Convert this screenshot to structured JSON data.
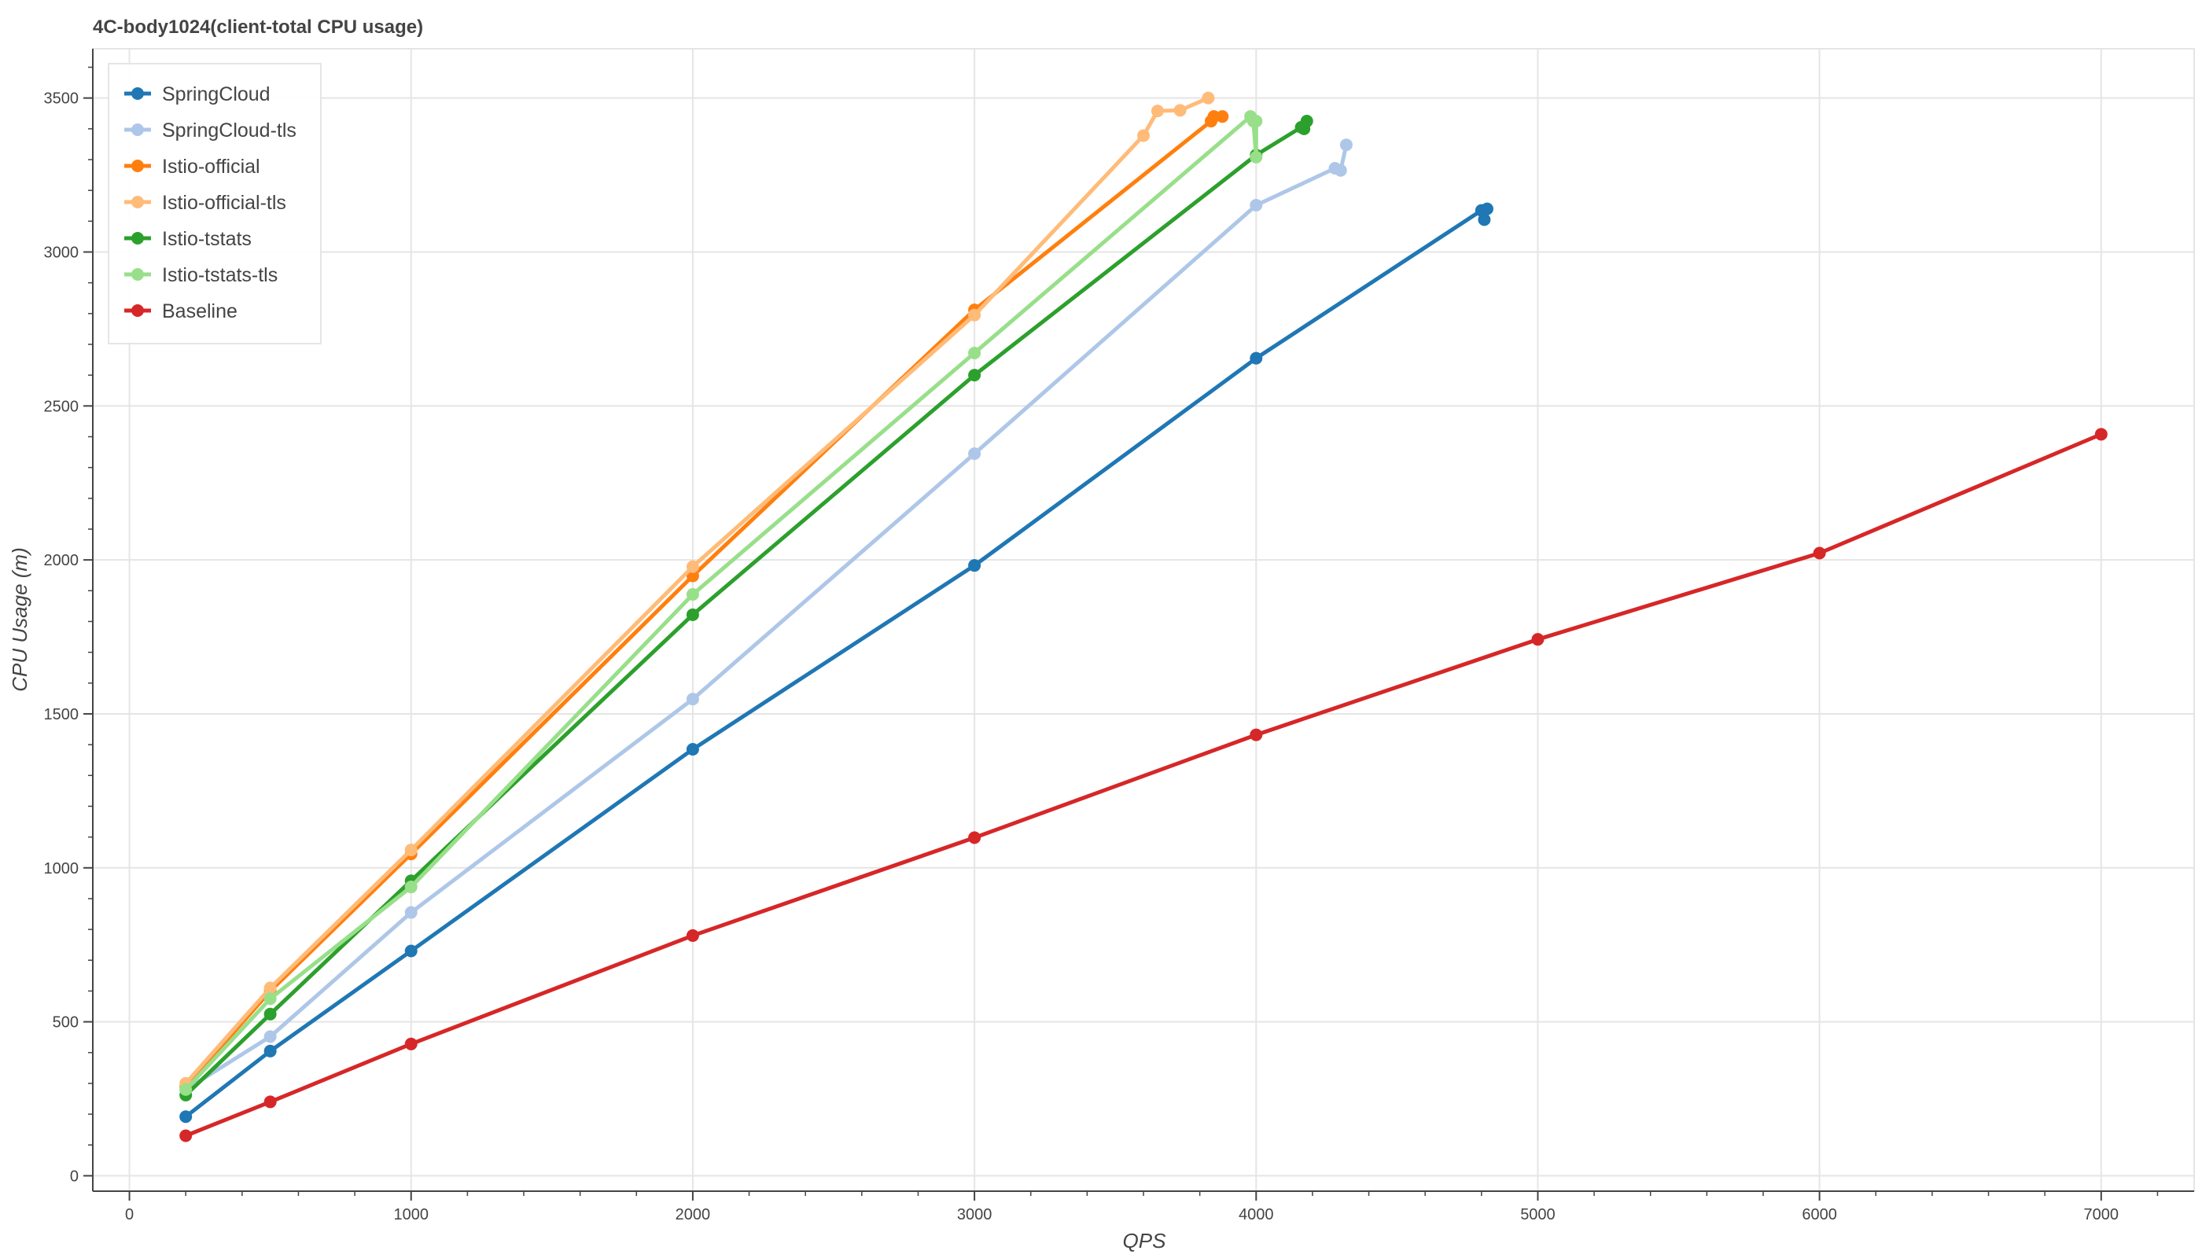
{
  "chart_data": {
    "type": "line",
    "title": "4C-body1024(client-total CPU usage)",
    "xlabel": "QPS",
    "ylabel": "CPU Usage (m)",
    "xlim": [
      -130,
      7330
    ],
    "ylim": [
      -50,
      3660
    ],
    "x_ticks": [
      0,
      1000,
      2000,
      3000,
      4000,
      5000,
      6000,
      7000
    ],
    "y_ticks": [
      0,
      500,
      1000,
      1500,
      2000,
      2500,
      3000,
      3500
    ],
    "grid": true,
    "legend_position": "top-left",
    "series": [
      {
        "name": "SpringCloud",
        "color": "#1f77b4",
        "points": [
          [
            200,
            192
          ],
          [
            500,
            405
          ],
          [
            1000,
            730
          ],
          [
            2000,
            1385
          ],
          [
            3000,
            1982
          ],
          [
            4000,
            2655
          ],
          [
            4800,
            3135
          ],
          [
            4810,
            3105
          ],
          [
            4820,
            3140
          ]
        ]
      },
      {
        "name": "SpringCloud-tls",
        "color": "#aec7e8",
        "points": [
          [
            200,
            280
          ],
          [
            500,
            452
          ],
          [
            1000,
            855
          ],
          [
            2000,
            1548
          ],
          [
            3000,
            2345
          ],
          [
            4000,
            3152
          ],
          [
            4280,
            3272
          ],
          [
            4300,
            3265
          ],
          [
            4320,
            3348
          ]
        ]
      },
      {
        "name": "Istio-official",
        "color": "#ff7f0e",
        "points": [
          [
            200,
            290
          ],
          [
            500,
            600
          ],
          [
            1000,
            1045
          ],
          [
            2000,
            1948
          ],
          [
            3000,
            2812
          ],
          [
            3840,
            3425
          ],
          [
            3850,
            3440
          ],
          [
            3880,
            3440
          ]
        ]
      },
      {
        "name": "Istio-official-tls",
        "color": "#ffbb78",
        "points": [
          [
            200,
            300
          ],
          [
            500,
            610
          ],
          [
            1000,
            1058
          ],
          [
            2000,
            1978
          ],
          [
            3000,
            2795
          ],
          [
            3600,
            3378
          ],
          [
            3650,
            3458
          ],
          [
            3730,
            3460
          ],
          [
            3830,
            3500
          ]
        ]
      },
      {
        "name": "Istio-tstats",
        "color": "#2ca02c",
        "points": [
          [
            200,
            262
          ],
          [
            500,
            525
          ],
          [
            1000,
            958
          ],
          [
            2000,
            1822
          ],
          [
            3000,
            2600
          ],
          [
            4000,
            3315
          ],
          [
            4160,
            3405
          ],
          [
            4170,
            3400
          ],
          [
            4180,
            3425
          ]
        ]
      },
      {
        "name": "Istio-tstats-tls",
        "color": "#98df8a",
        "points": [
          [
            200,
            280
          ],
          [
            500,
            575
          ],
          [
            1000,
            938
          ],
          [
            2000,
            1888
          ],
          [
            3000,
            2672
          ],
          [
            3980,
            3440
          ],
          [
            3990,
            3425
          ],
          [
            4000,
            3308
          ],
          [
            4000,
            3425
          ]
        ]
      },
      {
        "name": "Baseline",
        "color": "#d62728",
        "points": [
          [
            200,
            130
          ],
          [
            500,
            240
          ],
          [
            1000,
            428
          ],
          [
            2000,
            780
          ],
          [
            3000,
            1098
          ],
          [
            4000,
            1432
          ],
          [
            5000,
            1742
          ],
          [
            6000,
            2022
          ],
          [
            7000,
            2408
          ]
        ]
      }
    ]
  }
}
